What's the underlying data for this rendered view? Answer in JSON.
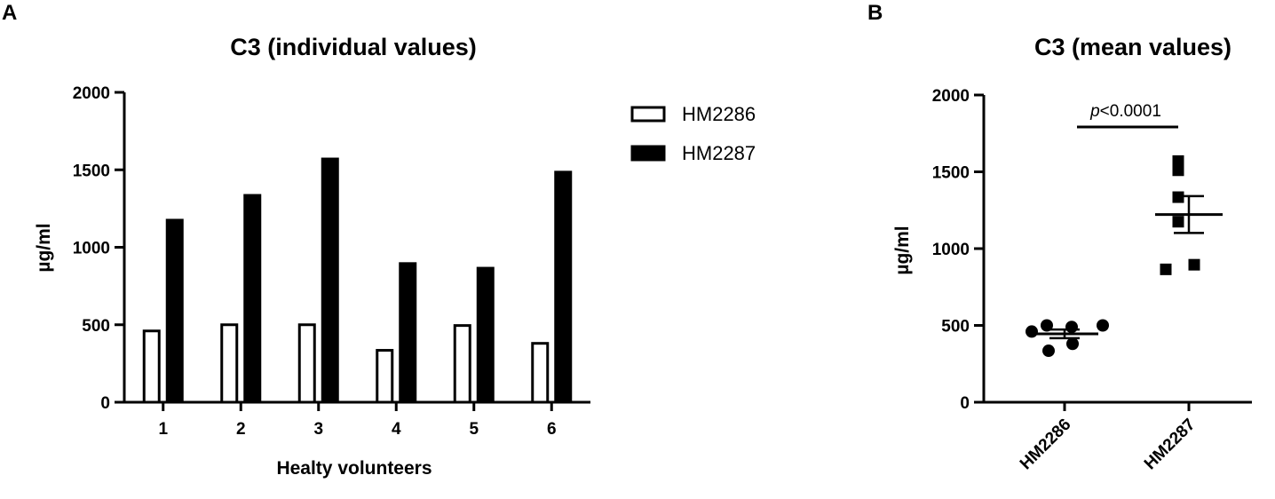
{
  "panel_a": {
    "letter": "A"
  },
  "panel_b": {
    "letter": "B"
  },
  "chart_data": [
    {
      "type": "bar",
      "title": "C3 (individual values)",
      "xlabel": "Healty volunteers",
      "ylabel": "µg/ml",
      "ylim": [
        0,
        2000
      ],
      "yticks": [
        0,
        500,
        1000,
        1500,
        2000
      ],
      "categories": [
        "1",
        "2",
        "3",
        "4",
        "5",
        "6"
      ],
      "series": [
        {
          "name": "HM2286",
          "fill": "#ffffff",
          "values": [
            460,
            500,
            500,
            335,
            495,
            380
          ]
        },
        {
          "name": "HM2287",
          "fill": "#000000",
          "values": [
            1175,
            1335,
            1570,
            895,
            865,
            1485
          ]
        }
      ],
      "legend": "right"
    },
    {
      "type": "scatter",
      "title": "C3 (mean values)",
      "ylabel": "µg/ml",
      "ylim": [
        0,
        2000
      ],
      "yticks": [
        0,
        500,
        1000,
        1500,
        2000
      ],
      "categories": [
        "HM2286",
        "HM2287"
      ],
      "groups": [
        {
          "name": "HM2286",
          "marker": "circle",
          "points": [
            500,
            490,
            500,
            460,
            380,
            335
          ],
          "mean": 445,
          "sem": 28
        },
        {
          "name": "HM2287",
          "marker": "square",
          "points": [
            1570,
            1510,
            1335,
            1175,
            895,
            865
          ],
          "mean": 1222,
          "sem": 120
        }
      ],
      "annotation": {
        "italic": "p",
        "text": "<0.0001"
      }
    }
  ]
}
